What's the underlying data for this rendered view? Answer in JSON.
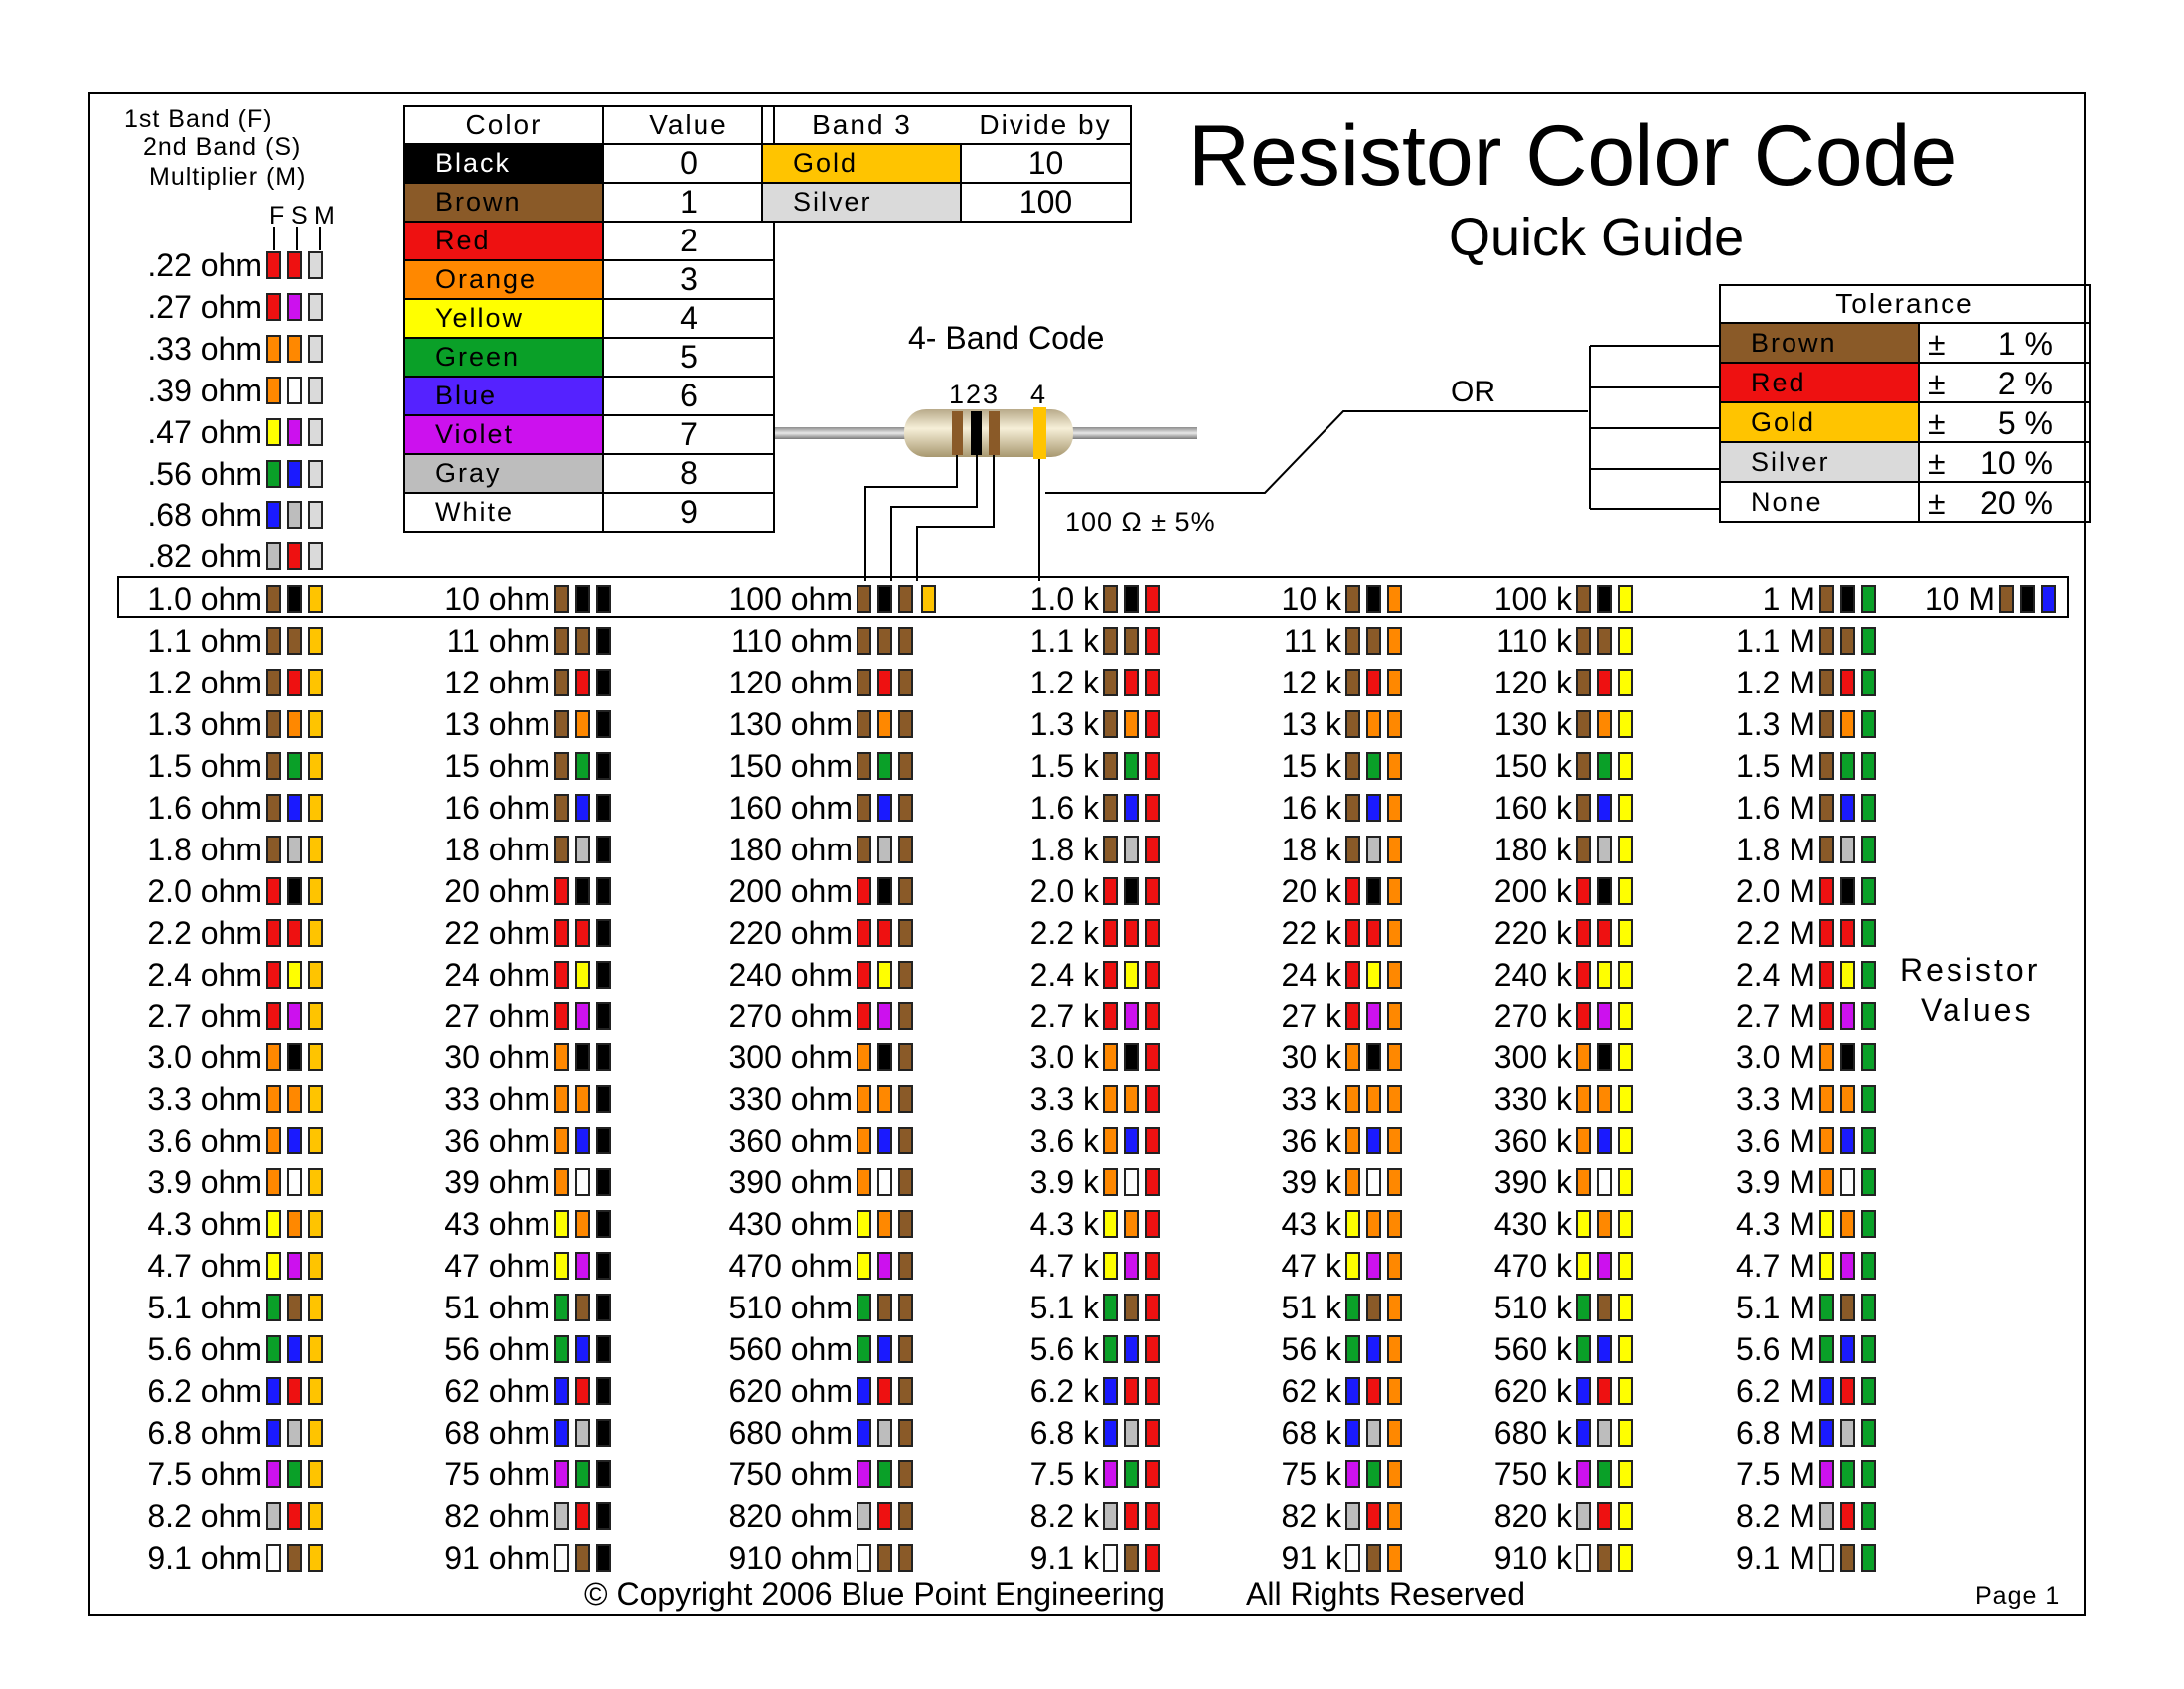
{
  "title": "Resistor Color Code",
  "subtitle": "Quick Guide",
  "legend": {
    "first_band": "1st Band (F)",
    "second_band": "2nd Band (S)",
    "multiplier": "Multiplier (M)",
    "col_f": "F",
    "col_s": "S",
    "col_m": "M"
  },
  "colors": {
    "black": "#000000",
    "brown": "#8a5a28",
    "red": "#ee1111",
    "orange": "#ff8800",
    "yellow": "#ffff00",
    "green": "#0aa028",
    "blue": "#1a1aff",
    "violet": "#cc11ee",
    "gray": "#bdbdbd",
    "white": "#ffffff",
    "gold": "#ffc400",
    "silver": "#dadada"
  },
  "color_table": {
    "header_color": "Color",
    "header_value": "Value",
    "rows": [
      {
        "name": "Black",
        "value": "0",
        "bg": "#000000",
        "fg": "#ffffff"
      },
      {
        "name": "Brown",
        "value": "1",
        "bg": "#8a5a28",
        "fg": "#000000"
      },
      {
        "name": "Red",
        "value": "2",
        "bg": "#ee1111",
        "fg": "#000000"
      },
      {
        "name": "Orange",
        "value": "3",
        "bg": "#ff8800",
        "fg": "#000000"
      },
      {
        "name": "Yellow",
        "value": "4",
        "bg": "#ffff00",
        "fg": "#000000"
      },
      {
        "name": "Green",
        "value": "5",
        "bg": "#0aa028",
        "fg": "#000000"
      },
      {
        "name": "Blue",
        "value": "6",
        "bg": "#5522ff",
        "fg": "#000000"
      },
      {
        "name": "Violet",
        "value": "7",
        "bg": "#cc11ee",
        "fg": "#000000"
      },
      {
        "name": "Gray",
        "value": "8",
        "bg": "#bdbdbd",
        "fg": "#000000"
      },
      {
        "name": "White",
        "value": "9",
        "bg": "#ffffff",
        "fg": "#000000"
      }
    ]
  },
  "band3_table": {
    "header_band": "Band 3",
    "header_divide": "Divide by",
    "rows": [
      {
        "name": "Gold",
        "value": "10",
        "bg": "#ffc400"
      },
      {
        "name": "Silver",
        "value": "100",
        "bg": "#dadada"
      }
    ]
  },
  "band_code": {
    "label": "4- Band Code",
    "numbers": "123",
    "number4": "4",
    "example": "100 Ω  ± 5%",
    "or_label": "OR"
  },
  "tolerance_table": {
    "header": "Tolerance",
    "rows": [
      {
        "name": "Brown",
        "sign": "±",
        "value": "1 %",
        "bg": "#8a5a28"
      },
      {
        "name": "Red",
        "sign": "±",
        "value": "2 %",
        "bg": "#ee1111"
      },
      {
        "name": "Gold",
        "sign": "±",
        "value": "5 %",
        "bg": "#ffc400"
      },
      {
        "name": "Silver",
        "sign": "±",
        "value": "10 %",
        "bg": "#dadada"
      },
      {
        "name": "None",
        "sign": "±",
        "value": "20 %",
        "bg": "#ffffff"
      }
    ]
  },
  "small_values": [
    {
      "label": ".22 ohm",
      "bands": [
        "red",
        "red",
        "silver"
      ]
    },
    {
      "label": ".27 ohm",
      "bands": [
        "red",
        "violet",
        "silver"
      ]
    },
    {
      "label": ".33 ohm",
      "bands": [
        "orange",
        "orange",
        "silver"
      ]
    },
    {
      "label": ".39 ohm",
      "bands": [
        "orange",
        "white",
        "silver"
      ]
    },
    {
      "label": ".47 ohm",
      "bands": [
        "yellow",
        "violet",
        "silver"
      ]
    },
    {
      "label": ".56 ohm",
      "bands": [
        "green",
        "blue",
        "silver"
      ]
    },
    {
      "label": ".68 ohm",
      "bands": [
        "blue",
        "gray",
        "silver"
      ]
    },
    {
      "label": ".82 ohm",
      "bands": [
        "gray",
        "red",
        "silver"
      ]
    }
  ],
  "series_digits": [
    "1.0",
    "1.1",
    "1.2",
    "1.3",
    "1.5",
    "1.6",
    "1.8",
    "2.0",
    "2.2",
    "2.4",
    "2.7",
    "3.0",
    "3.3",
    "3.6",
    "3.9",
    "4.3",
    "4.7",
    "5.1",
    "5.6",
    "6.2",
    "6.8",
    "7.5",
    "8.2",
    "9.1"
  ],
  "value_columns": [
    {
      "labels": [
        "1.0 ohm",
        "1.1 ohm",
        "1.2 ohm",
        "1.3 ohm",
        "1.5 ohm",
        "1.6 ohm",
        "1.8 ohm",
        "2.0 ohm",
        "2.2 ohm",
        "2.4 ohm",
        "2.7 ohm",
        "3.0 ohm",
        "3.3 ohm",
        "3.6 ohm",
        "3.9 ohm",
        "4.3 ohm",
        "4.7 ohm",
        "5.1 ohm",
        "5.6 ohm",
        "6.2 ohm",
        "6.8 ohm",
        "7.5 ohm",
        "8.2 ohm",
        "9.1 ohm"
      ],
      "multiplier": "gold"
    },
    {
      "labels": [
        "10 ohm",
        "11 ohm",
        "12 ohm",
        "13 ohm",
        "15 ohm",
        "16 ohm",
        "18 ohm",
        "20 ohm",
        "22 ohm",
        "24 ohm",
        "27 ohm",
        "30 ohm",
        "33 ohm",
        "36 ohm",
        "39 ohm",
        "43 ohm",
        "47 ohm",
        "51 ohm",
        "56 ohm",
        "62 ohm",
        "68 ohm",
        "75 ohm",
        "82 ohm",
        "91 ohm"
      ],
      "multiplier": "black"
    },
    {
      "labels": [
        "100 ohm",
        "110 ohm",
        "120 ohm",
        "130 ohm",
        "150 ohm",
        "160 ohm",
        "180 ohm",
        "200 ohm",
        "220 ohm",
        "240 ohm",
        "270 ohm",
        "300 ohm",
        "330 ohm",
        "360 ohm",
        "390 ohm",
        "430 ohm",
        "470 ohm",
        "510 ohm",
        "560 ohm",
        "620 ohm",
        "680 ohm",
        "750 ohm",
        "820 ohm",
        "910 ohm"
      ],
      "multiplier": "brown"
    },
    {
      "labels": [
        "1.0 k",
        "1.1 k",
        "1.2 k",
        "1.3 k",
        "1.5 k",
        "1.6 k",
        "1.8 k",
        "2.0 k",
        "2.2 k",
        "2.4 k",
        "2.7 k",
        "3.0 k",
        "3.3 k",
        "3.6 k",
        "3.9 k",
        "4.3 k",
        "4.7 k",
        "5.1 k",
        "5.6 k",
        "6.2 k",
        "6.8 k",
        "7.5 k",
        "8.2 k",
        "9.1 k"
      ],
      "multiplier": "red"
    },
    {
      "labels": [
        "10 k",
        "11 k",
        "12 k",
        "13 k",
        "15 k",
        "16 k",
        "18 k",
        "20 k",
        "22 k",
        "24 k",
        "27 k",
        "30 k",
        "33 k",
        "36 k",
        "39 k",
        "43 k",
        "47 k",
        "51 k",
        "56 k",
        "62 k",
        "68 k",
        "75 k",
        "82 k",
        "91 k"
      ],
      "multiplier": "orange"
    },
    {
      "labels": [
        "100 k",
        "110 k",
        "120 k",
        "130 k",
        "150 k",
        "160 k",
        "180 k",
        "200 k",
        "220 k",
        "240 k",
        "270 k",
        "300 k",
        "330 k",
        "360 k",
        "390 k",
        "430 k",
        "470 k",
        "510 k",
        "560 k",
        "620 k",
        "680 k",
        "750 k",
        "820 k",
        "910 k"
      ],
      "multiplier": "yellow"
    },
    {
      "labels": [
        "1 M",
        "1.1 M",
        "1.2 M",
        "1.3 M",
        "1.5 M",
        "1.6 M",
        "1.8 M",
        "2.0 M",
        "2.2 M",
        "2.4 M",
        "2.7 M",
        "3.0 M",
        "3.3 M",
        "3.6 M",
        "3.9 M",
        "4.3 M",
        "4.7 M",
        "5.1 M",
        "5.6 M",
        "6.2 M",
        "6.8 M",
        "7.5 M",
        "8.2 M",
        "9.1 M"
      ],
      "multiplier": "green"
    }
  ],
  "ten_meg": {
    "label": "10 M",
    "bands": [
      "brown",
      "black",
      "blue"
    ]
  },
  "hundred_example_fourth_band": "gold",
  "resistor_values_label_1": "Resistor",
  "resistor_values_label_2": "Values",
  "footer": {
    "copyright": "© Copyright  2006 Blue Point Engineering",
    "rights": "All Rights Reserved",
    "page": "Page  1"
  }
}
